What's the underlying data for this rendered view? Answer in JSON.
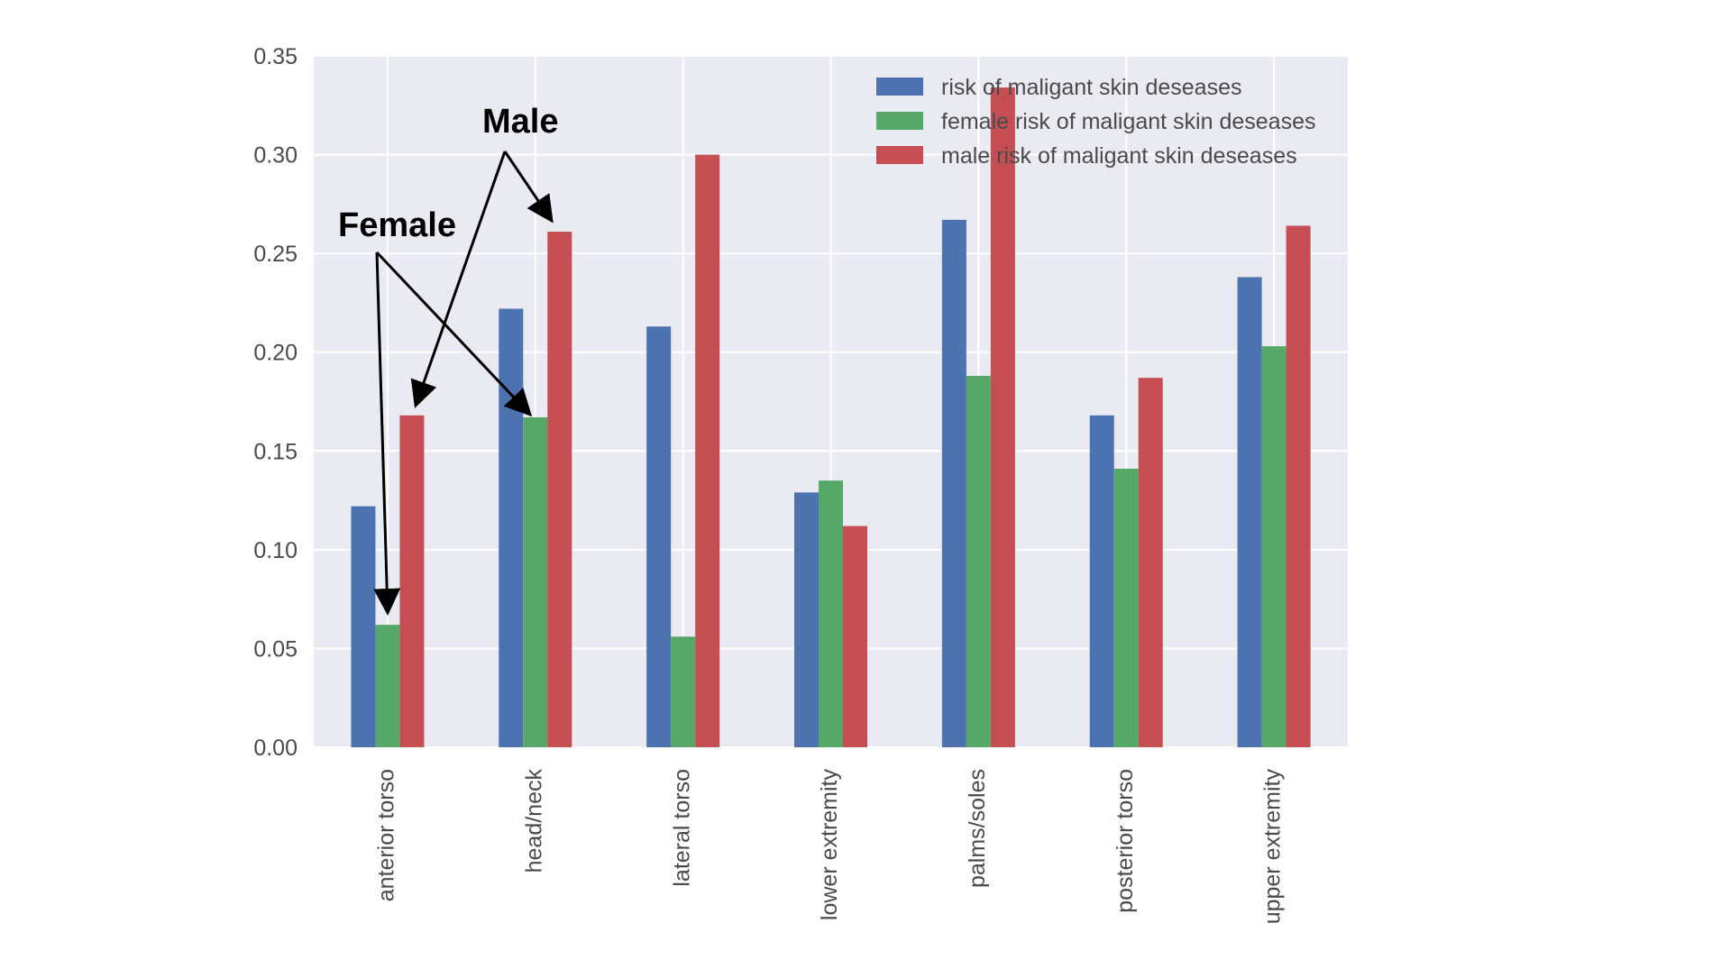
{
  "chart_data": {
    "type": "bar",
    "categories": [
      "anterior torso",
      "head/neck",
      "lateral torso",
      "lower extremity",
      "palms/soles",
      "posterior torso",
      "upper extremity"
    ],
    "series": [
      {
        "name": "risk of maligant skin deseases",
        "color": "#4C72B0",
        "values": [
          0.122,
          0.222,
          0.213,
          0.129,
          0.267,
          0.168,
          0.238
        ]
      },
      {
        "name": "female risk of maligant skin deseases",
        "color": "#55A868",
        "values": [
          0.062,
          0.167,
          0.056,
          0.135,
          0.188,
          0.141,
          0.203
        ]
      },
      {
        "name": "male risk of maligant skin deseases",
        "color": "#C44E52",
        "values": [
          0.168,
          0.261,
          0.3,
          0.112,
          0.334,
          0.187,
          0.264
        ]
      }
    ],
    "ylim": [
      0,
      0.35
    ],
    "yticks": [
      "0.00",
      "0.05",
      "0.10",
      "0.15",
      "0.20",
      "0.25",
      "0.30",
      "0.35"
    ],
    "title": "",
    "xlabel": "",
    "ylabel": "",
    "grid": true,
    "legend_position": "top-right"
  },
  "annotations": {
    "male_label": "Male",
    "female_label": "Female"
  },
  "colors": {
    "plot_background": "#EAEAF2",
    "grid": "#FFFFFF"
  }
}
